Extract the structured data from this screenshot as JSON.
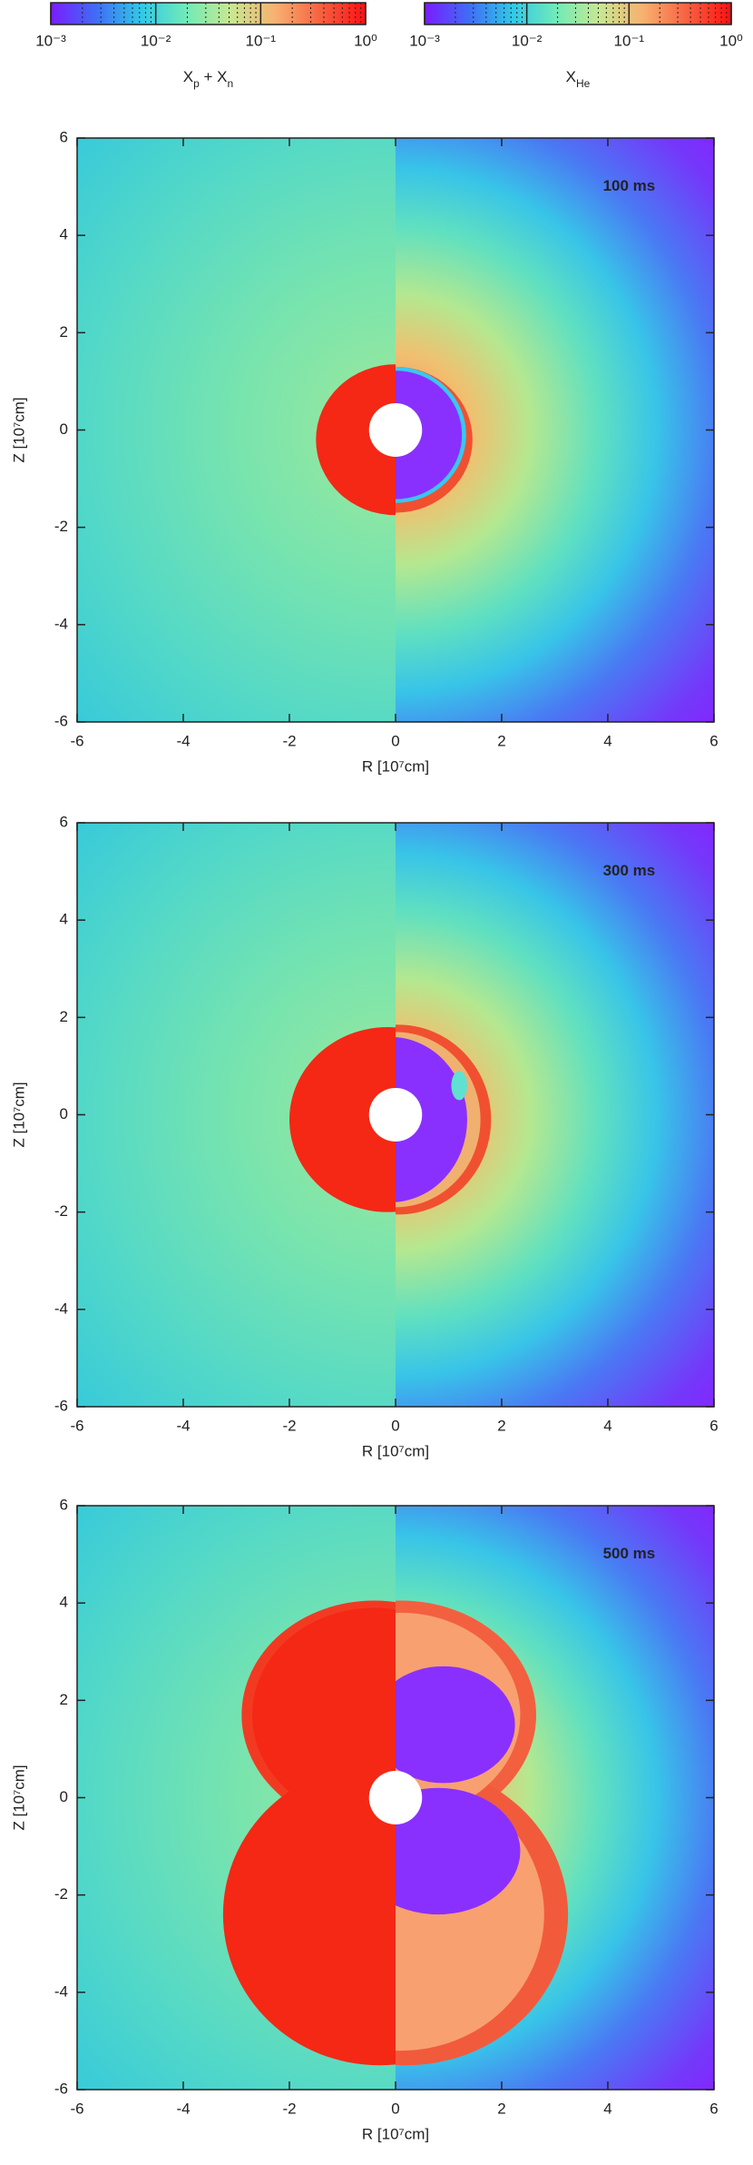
{
  "chart_data": [
    {
      "type": "colorbar",
      "label": [
        "X",
        "p",
        " + X",
        "n"
      ],
      "log": true,
      "xlim": [
        0.001,
        1
      ],
      "xticks": [
        {
          "value": 0.001,
          "label": "10⁻³"
        },
        {
          "value": 0.01,
          "label": "10⁻²"
        },
        {
          "value": 0.1,
          "label": "10⁻¹"
        },
        {
          "value": 1,
          "label": "10⁰"
        }
      ],
      "colors": [
        "#7a1cff",
        "#3f6cf6",
        "#30c8e8",
        "#70eab8",
        "#c8e890",
        "#f8b070",
        "#f86040",
        "#ff1010"
      ]
    },
    {
      "type": "colorbar",
      "label": [
        "X",
        "He"
      ],
      "log": true,
      "xlim": [
        0.001,
        1
      ],
      "xticks": [
        {
          "value": 0.001,
          "label": "10⁻³"
        },
        {
          "value": 0.01,
          "label": "10⁻²"
        },
        {
          "value": 0.1,
          "label": "10⁻¹"
        },
        {
          "value": 1,
          "label": "10⁰"
        }
      ],
      "colors": [
        "#7a1cff",
        "#3f6cf6",
        "#30c8e8",
        "#70eab8",
        "#c8e890",
        "#f8b070",
        "#f86040",
        "#ff1010"
      ]
    },
    {
      "type": "heatmap",
      "annotation": "100 ms",
      "xlabel": "R [10⁷cm]",
      "ylabel": "Z [10⁷cm]",
      "xlim": [
        -6,
        6
      ],
      "ylim": [
        -6,
        6
      ],
      "xticks": [
        -6,
        -4,
        -2,
        0,
        2,
        4,
        6
      ],
      "yticks": [
        -6,
        -4,
        -2,
        0,
        2,
        4,
        6
      ]
    },
    {
      "type": "heatmap",
      "annotation": "300 ms",
      "xlabel": "R [10⁷cm]",
      "ylabel": "Z [10⁷cm]",
      "xlim": [
        -6,
        6
      ],
      "ylim": [
        -6,
        6
      ],
      "xticks": [
        -6,
        -4,
        -2,
        0,
        2,
        4,
        6
      ],
      "yticks": [
        -6,
        -4,
        -2,
        0,
        2,
        4,
        6
      ]
    },
    {
      "type": "heatmap",
      "annotation": "500 ms",
      "xlabel": "R [10⁷cm]",
      "ylabel": "Z [10⁷cm]",
      "xlim": [
        -6,
        6
      ],
      "ylim": [
        -6,
        6
      ],
      "xticks": [
        -6,
        -4,
        -2,
        0,
        2,
        4,
        6
      ],
      "yticks": [
        -6,
        -4,
        -2,
        0,
        2,
        4,
        6
      ]
    }
  ]
}
